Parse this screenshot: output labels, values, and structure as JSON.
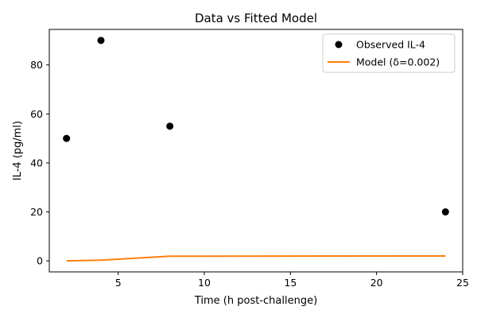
{
  "chart_data": {
    "type": "scatter",
    "title": "Data vs Fitted Model",
    "xlabel": "Time (h post-challenge)",
    "ylabel": "IL-4 (pg/ml)",
    "xlim": [
      1.0,
      25.0
    ],
    "ylim": [
      -4.5,
      94.5
    ],
    "xticks": [
      5,
      10,
      15,
      20,
      25
    ],
    "yticks": [
      0,
      20,
      40,
      60,
      80
    ],
    "grid": false,
    "legend_position": "top-right",
    "series": [
      {
        "name": "Observed IL-4",
        "kind": "scatter",
        "color": "#000000",
        "x": [
          2,
          4,
          8,
          24
        ],
        "y": [
          50,
          90,
          55,
          20
        ]
      },
      {
        "name": "Model (δ=0.002)",
        "kind": "line",
        "color": "#ff7f0e",
        "x": [
          2,
          4,
          8,
          24
        ],
        "y": [
          0.0,
          0.3,
          1.9,
          2.0
        ]
      }
    ]
  }
}
